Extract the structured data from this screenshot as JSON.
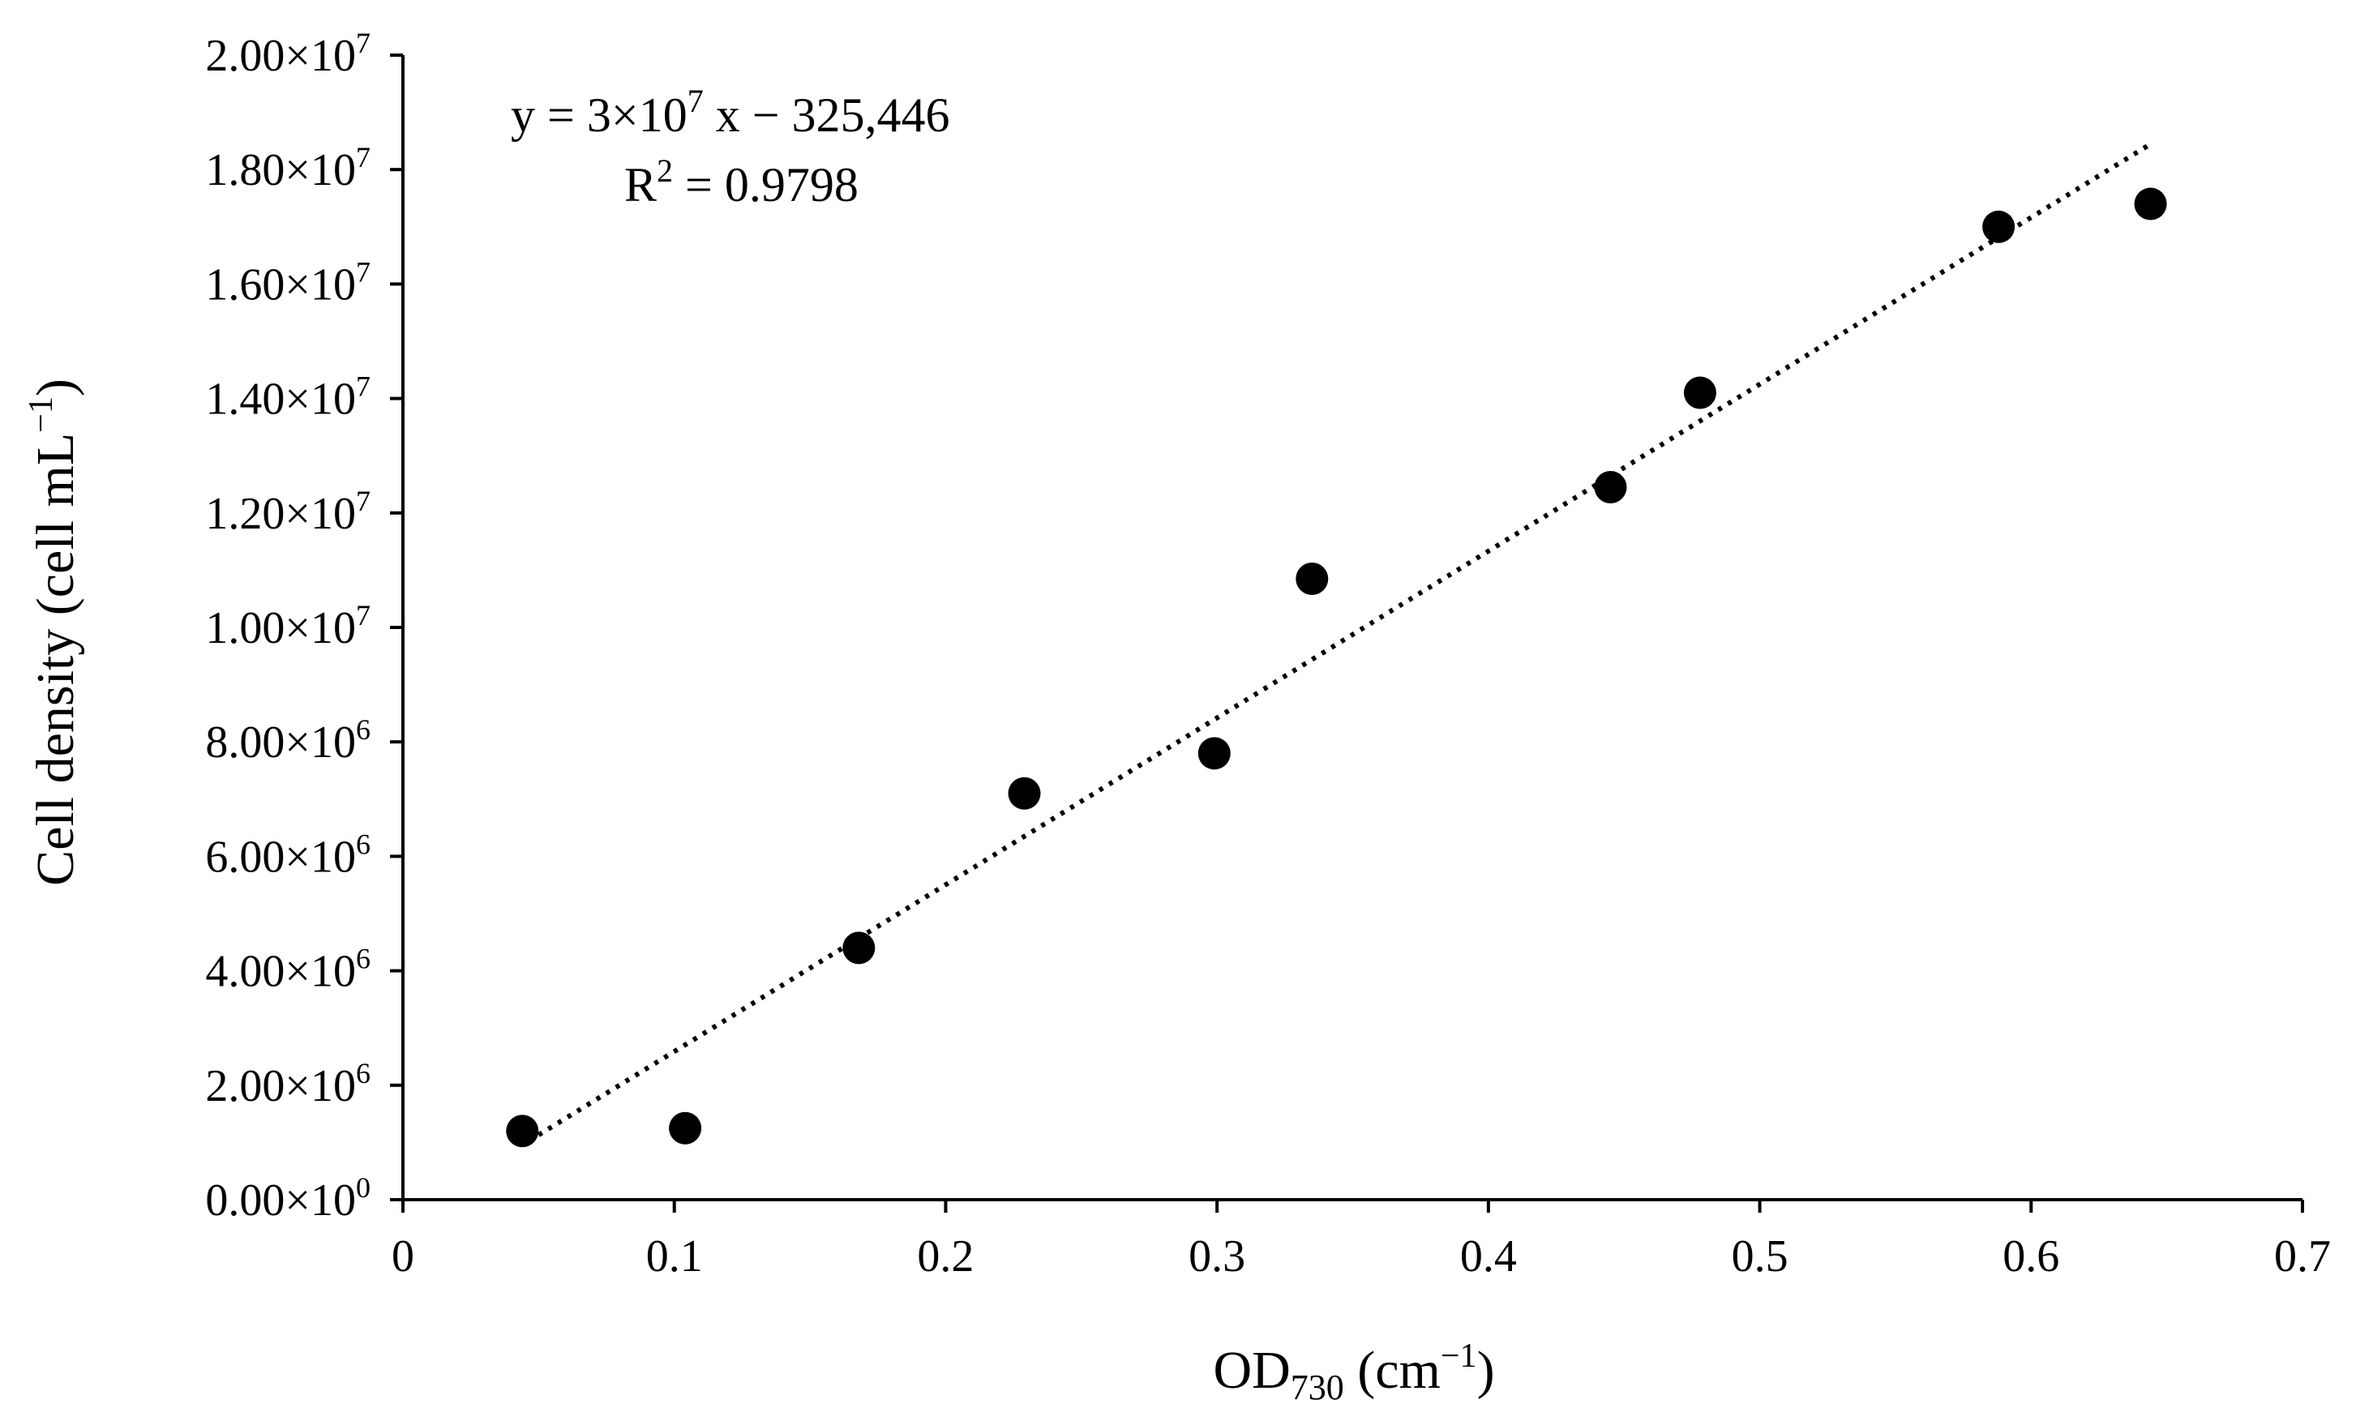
{
  "chart_data": {
    "type": "scatter",
    "title": "",
    "xlabel": {
      "main": "OD",
      "sub": "730",
      "unit": " (cm",
      "unit_sup": "−1",
      "close": ")"
    },
    "ylabel": {
      "main": "Cell density (cell mL",
      "sup": "−1",
      "close": ")"
    },
    "xlim": [
      0,
      0.7
    ],
    "ylim": [
      0,
      20000000
    ],
    "x_ticks": [
      {
        "value": 0,
        "label": "0"
      },
      {
        "value": 0.1,
        "label": "0.1"
      },
      {
        "value": 0.2,
        "label": "0.2"
      },
      {
        "value": 0.3,
        "label": "0.3"
      },
      {
        "value": 0.4,
        "label": "0.4"
      },
      {
        "value": 0.5,
        "label": "0.5"
      },
      {
        "value": 0.6,
        "label": "0.6"
      },
      {
        "value": 0.7,
        "label": "0.7"
      }
    ],
    "y_ticks": [
      {
        "value": 0,
        "mantissa": "0.00",
        "times": "×",
        "base": "10",
        "exponent": "0"
      },
      {
        "value": 2000000,
        "mantissa": "2.00",
        "times": "×",
        "base": "10",
        "exponent": "6"
      },
      {
        "value": 4000000,
        "mantissa": "4.00",
        "times": "×",
        "base": "10",
        "exponent": "6"
      },
      {
        "value": 6000000,
        "mantissa": "6.00",
        "times": "×",
        "base": "10",
        "exponent": "6"
      },
      {
        "value": 8000000,
        "mantissa": "8.00",
        "times": "×",
        "base": "10",
        "exponent": "6"
      },
      {
        "value": 10000000,
        "mantissa": "1.00",
        "times": "×",
        "base": "10",
        "exponent": "7"
      },
      {
        "value": 12000000,
        "mantissa": "1.20",
        "times": "×",
        "base": "10",
        "exponent": "7"
      },
      {
        "value": 14000000,
        "mantissa": "1.40",
        "times": "×",
        "base": "10",
        "exponent": "7"
      },
      {
        "value": 16000000,
        "mantissa": "1.60",
        "times": "×",
        "base": "10",
        "exponent": "7"
      },
      {
        "value": 18000000,
        "mantissa": "1.80",
        "times": "×",
        "base": "10",
        "exponent": "7"
      },
      {
        "value": 20000000,
        "mantissa": "2.00",
        "times": "×",
        "base": "10",
        "exponent": "7"
      }
    ],
    "series": [
      {
        "name": "Cell density",
        "marker": "circle",
        "color": "#000000",
        "x": [
          0.044,
          0.104,
          0.168,
          0.229,
          0.299,
          0.335,
          0.445,
          0.478,
          0.588,
          0.644
        ],
        "y": [
          1200000,
          1250000,
          4400000,
          7100000,
          7800000,
          10850000,
          12450000,
          14100000,
          17000000,
          17400000
        ]
      }
    ],
    "trendline": {
      "style": "dotted",
      "color": "#000000",
      "x_range": [
        0.05,
        0.645
      ],
      "slope": 29148000,
      "intercept": -325446
    },
    "equation": {
      "line1": {
        "prefix": "y = 3",
        "times": "×",
        "base": "10",
        "exponent": "7",
        "suffix": " x − 325,446"
      },
      "line2": {
        "prefix": "R",
        "exponent": "2",
        "suffix": " = 0.9798"
      }
    },
    "grid": false,
    "legend": "none"
  }
}
